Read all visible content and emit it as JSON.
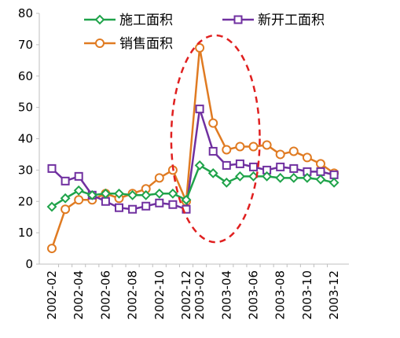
{
  "chart_data": {
    "type": "line",
    "title": "",
    "xlabel": "",
    "ylabel": "",
    "ylim": [
      0,
      80
    ],
    "yticks": [
      0,
      10,
      20,
      30,
      40,
      50,
      60,
      70,
      80
    ],
    "x": [
      "2002-02",
      "2002-03",
      "2002-04",
      "2002-05",
      "2002-06",
      "2002-07",
      "2002-08",
      "2002-09",
      "2002-10",
      "2002-11",
      "2002-12",
      "2003-02",
      "2003-03",
      "2003-04",
      "2003-05",
      "2003-06",
      "2003-07",
      "2003-08",
      "2003-09",
      "2003-10",
      "2003-11",
      "2003-12"
    ],
    "xtick_labels": [
      "2002-02",
      "2002-04",
      "2002-06",
      "2002-08",
      "2002-10",
      "2002-12",
      "2003-02",
      "2003-04",
      "2003-06",
      "2003-08",
      "2003-10",
      "2003-12"
    ],
    "legend_position": "top",
    "grid": false,
    "series": [
      {
        "name": "施工面积",
        "color": "#1fa34a",
        "marker": "diamond",
        "values": [
          18.3,
          21,
          23.5,
          22,
          22.5,
          22.5,
          22,
          22,
          22.5,
          22.5,
          20.5,
          31.5,
          29,
          26,
          28,
          28,
          28,
          27.5,
          27.5,
          27.5,
          27,
          26
        ]
      },
      {
        "name": "新开工面积",
        "color": "#7030a0",
        "marker": "square",
        "values": [
          30.5,
          26.5,
          28,
          22,
          20,
          18,
          17.5,
          18.5,
          19.5,
          19,
          17.5,
          49.5,
          36,
          31.5,
          32,
          31,
          30,
          31,
          30.5,
          29.5,
          29.5,
          28.5
        ]
      },
      {
        "name": "销售面积",
        "color": "#e07b22",
        "marker": "circle",
        "values": [
          5,
          17.5,
          20.5,
          20.5,
          22.5,
          21,
          22.5,
          24,
          27.5,
          30,
          20,
          69,
          45,
          36.5,
          37.5,
          37.5,
          38,
          35,
          36,
          34,
          32,
          29
        ]
      }
    ],
    "annotations": [
      {
        "type": "dashed-ellipse",
        "color": "#e02020",
        "x_range": [
          "2002-11",
          "2003-06"
        ],
        "y_range": [
          7,
          73
        ]
      }
    ]
  }
}
